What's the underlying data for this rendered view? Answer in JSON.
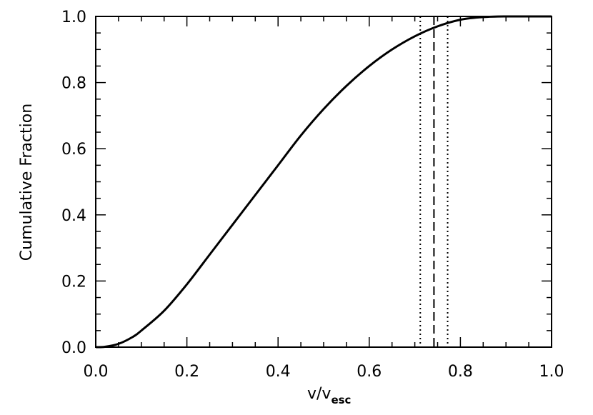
{
  "chart_data": {
    "type": "line",
    "xlabel_main": "v/v",
    "xlabel_sub": "esc",
    "ylabel": "Cumulative Fraction",
    "xlim": [
      0.0,
      1.0
    ],
    "ylim": [
      0.0,
      1.0
    ],
    "xticks": [
      "0.0",
      "0.2",
      "0.4",
      "0.6",
      "0.8",
      "1.0"
    ],
    "yticks": [
      "0.0",
      "0.2",
      "0.4",
      "0.6",
      "0.8",
      "1.0"
    ],
    "grid": false,
    "series": [
      {
        "x": [
          0.0,
          0.02,
          0.05,
          0.08,
          0.1,
          0.15,
          0.2,
          0.25,
          0.3,
          0.35,
          0.4,
          0.45,
          0.5,
          0.55,
          0.6,
          0.65,
          0.7,
          0.75,
          0.8,
          0.85,
          0.9,
          1.0
        ],
        "y": [
          0.0,
          0.001,
          0.01,
          0.03,
          0.05,
          0.11,
          0.19,
          0.28,
          0.37,
          0.46,
          0.55,
          0.64,
          0.72,
          0.79,
          0.85,
          0.9,
          0.94,
          0.97,
          0.99,
          0.998,
          1.0,
          1.0
        ],
        "style": "solid"
      }
    ],
    "vertical_lines": [
      {
        "x": 0.742,
        "style": "dashed"
      },
      {
        "x": 0.712,
        "style": "dotted"
      },
      {
        "x": 0.772,
        "style": "dotted"
      }
    ]
  }
}
